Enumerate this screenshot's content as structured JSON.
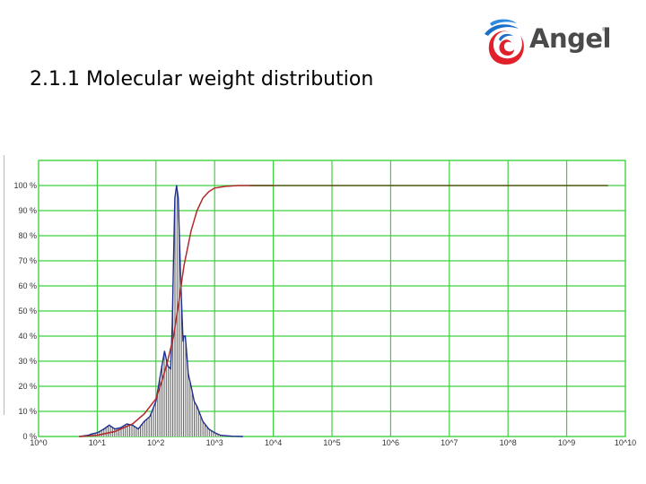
{
  "slide": {
    "title": "2.1.1 Molecular weight distribution",
    "logo_text": "Angel",
    "logo_mark": "®"
  },
  "colors": {
    "grid": "#3dd13d",
    "distribution": "#1f2f8f",
    "cumulative": "#b02a2a",
    "cumulative_plateau": "#5a5a1a",
    "fill_hatch": "#555555",
    "logo_red": "#e0202a",
    "logo_blue": "#1a6fc8"
  },
  "chart_data": {
    "type": "area",
    "title": "",
    "xlabel": "",
    "ylabel": "",
    "x_scale": "log10",
    "xlim": [
      1,
      10000000000
    ],
    "ylim": [
      0,
      110
    ],
    "grid": true,
    "x_tick_labels": [
      "10^0",
      "10^1",
      "10^2",
      "10^3",
      "10^4",
      "10^5",
      "10^6",
      "10^7",
      "10^8",
      "10^9",
      "10^10"
    ],
    "y_tick_labels": [
      "0 %",
      "10 %",
      "20 %",
      "30 %",
      "40 %",
      "50 %",
      "60 %",
      "70 %",
      "80 %",
      "90 %",
      "100 %"
    ],
    "series": [
      {
        "style": "filled-hatch",
        "x": [
          5,
          7,
          8,
          10,
          13,
          16,
          20,
          25,
          32,
          40,
          50,
          63,
          79,
          100,
          126,
          140,
          160,
          178,
          190,
          200,
          210,
          225,
          240,
          251,
          262,
          275,
          290,
          300,
          316,
          330,
          355,
          398,
          450,
          501,
          631,
          794,
          1000,
          1259,
          1585,
          2000,
          3000
        ],
        "y": [
          0,
          0.5,
          1,
          1.5,
          3,
          4.5,
          3,
          3.5,
          5,
          4.5,
          3,
          6,
          8,
          14,
          28,
          34,
          28,
          27,
          45,
          72,
          95,
          100,
          95,
          80,
          65,
          52,
          38,
          40,
          40,
          35,
          25,
          20,
          14,
          12,
          6,
          3,
          1.5,
          0.5,
          0.3,
          0.1,
          0
        ]
      },
      {
        "style": "cumulative-line",
        "x": [
          5,
          10,
          20,
          40,
          63,
          100,
          126,
          158,
          200,
          251,
          300,
          398,
          501,
          631,
          794,
          1000,
          1585,
          2512,
          3981,
          5000,
          10000,
          100000,
          1000000,
          10000000,
          100000000,
          1000000000,
          5000000000
        ],
        "y": [
          0,
          0.5,
          2,
          5,
          9,
          15,
          22,
          30,
          40,
          55,
          68,
          82,
          90,
          95,
          97.5,
          99,
          99.7,
          100,
          100,
          100,
          100,
          100,
          100,
          100,
          100,
          100,
          100
        ]
      }
    ]
  }
}
